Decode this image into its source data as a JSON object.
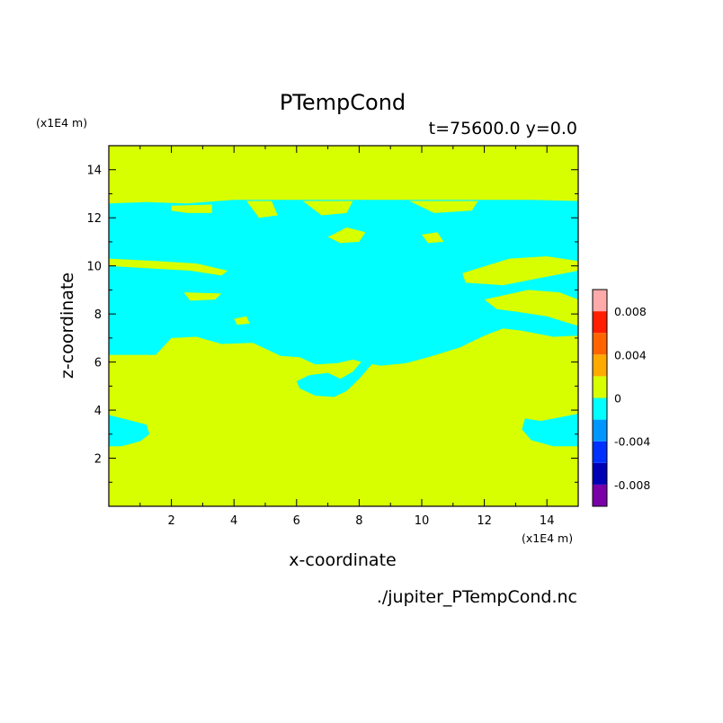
{
  "chart_data": {
    "type": "heatmap",
    "title": "PTempCond",
    "subtitle": "t=75600.0 y=0.0",
    "xlabel": "x-coordinate",
    "ylabel": "z-coordinate",
    "x_unit": "(x1E4 m)",
    "y_unit": "(x1E4 m)",
    "source": "./jupiter_PTempCond.nc",
    "xlim": [
      0,
      15
    ],
    "ylim": [
      0,
      15
    ],
    "x_ticks": [
      2,
      4,
      6,
      8,
      10,
      12,
      14
    ],
    "y_ticks": [
      2,
      4,
      6,
      8,
      10,
      12,
      14
    ],
    "colorbar": {
      "levels": [
        -0.01,
        -0.008,
        -0.006,
        -0.004,
        -0.002,
        0,
        0.002,
        0.004,
        0.006,
        0.008,
        0.01
      ],
      "colors": [
        "#7a00a8",
        "#0000b4",
        "#0030ff",
        "#0096ff",
        "#00ffff",
        "#d7ff00",
        "#ffaa00",
        "#ff6400",
        "#ff1e00",
        "#ffaaaa"
      ],
      "tick_labels": [
        "0.008",
        "0.004",
        "0",
        "-0.004",
        "-0.008"
      ],
      "tick_values": [
        0.008,
        0.004,
        0,
        -0.004,
        -0.008
      ]
    },
    "background_value_color": "#d7ff00",
    "regions": [
      {
        "name": "negative-cond-main",
        "value_range": [
          -0.002,
          0
        ],
        "color": "#00ffff",
        "outline": [
          [
            0,
            12.6
          ],
          [
            1.2,
            12.65
          ],
          [
            2.5,
            12.6
          ],
          [
            4,
            12.75
          ],
          [
            6,
            12.75
          ],
          [
            8,
            12.75
          ],
          [
            10,
            12.75
          ],
          [
            12,
            12.75
          ],
          [
            13.5,
            12.75
          ],
          [
            15,
            12.7
          ],
          [
            15,
            7.1
          ],
          [
            14.2,
            7.05
          ],
          [
            13.2,
            7.3
          ],
          [
            12.6,
            7.4
          ],
          [
            12,
            7.1
          ],
          [
            11.2,
            6.6
          ],
          [
            10.2,
            6.2
          ],
          [
            9.5,
            5.95
          ],
          [
            8.7,
            5.85
          ],
          [
            8.2,
            5.95
          ],
          [
            7.8,
            6.1
          ],
          [
            7.3,
            5.95
          ],
          [
            6.6,
            5.9
          ],
          [
            6.1,
            6.2
          ],
          [
            5.5,
            6.25
          ],
          [
            4.6,
            6.8
          ],
          [
            3.6,
            6.75
          ],
          [
            2.8,
            7.05
          ],
          [
            2,
            7.0
          ],
          [
            1.5,
            6.3
          ],
          [
            0,
            6.3
          ]
        ]
      },
      {
        "name": "negative-cond-lobe",
        "value_range": [
          -0.002,
          0
        ],
        "color": "#00ffff",
        "outline": [
          [
            6.0,
            5.2
          ],
          [
            6.4,
            5.45
          ],
          [
            7.0,
            5.55
          ],
          [
            7.4,
            5.3
          ],
          [
            7.8,
            5.6
          ],
          [
            8.2,
            6.2
          ],
          [
            8.4,
            5.9
          ],
          [
            8.0,
            5.3
          ],
          [
            7.6,
            4.8
          ],
          [
            7.2,
            4.55
          ],
          [
            6.6,
            4.6
          ],
          [
            6.1,
            4.9
          ]
        ]
      },
      {
        "name": "negative-cond-left-low",
        "value_range": [
          -0.002,
          0
        ],
        "color": "#00ffff",
        "outline": [
          [
            0,
            3.8
          ],
          [
            0.6,
            3.6
          ],
          [
            1.2,
            3.4
          ],
          [
            1.3,
            3.0
          ],
          [
            1.0,
            2.7
          ],
          [
            0.4,
            2.5
          ],
          [
            0,
            2.5
          ]
        ]
      },
      {
        "name": "negative-cond-right-low",
        "value_range": [
          -0.002,
          0
        ],
        "color": "#00ffff",
        "outline": [
          [
            13.3,
            3.65
          ],
          [
            13.8,
            3.55
          ],
          [
            14.4,
            3.7
          ],
          [
            15,
            3.85
          ],
          [
            15,
            2.5
          ],
          [
            14.2,
            2.5
          ],
          [
            13.5,
            2.75
          ],
          [
            13.2,
            3.2
          ]
        ]
      }
    ],
    "patches": [
      {
        "name": "zero-patch-top-left",
        "color": "#d7ff00",
        "points": [
          [
            2.0,
            12.5
          ],
          [
            3.3,
            12.55
          ],
          [
            3.3,
            12.2
          ],
          [
            2.5,
            12.2
          ],
          [
            2.0,
            12.3
          ]
        ]
      },
      {
        "name": "zero-patch-top-mid",
        "color": "#d7ff00",
        "points": [
          [
            4.4,
            12.7
          ],
          [
            5.2,
            12.7
          ],
          [
            5.4,
            12.1
          ],
          [
            4.8,
            12.0
          ]
        ]
      },
      {
        "name": "zero-patch-top-mid2",
        "color": "#d7ff00",
        "points": [
          [
            6.2,
            12.7
          ],
          [
            7.8,
            12.7
          ],
          [
            7.6,
            12.2
          ],
          [
            6.8,
            12.1
          ]
        ]
      },
      {
        "name": "zero-patch-top-right",
        "color": "#d7ff00",
        "points": [
          [
            9.6,
            12.7
          ],
          [
            11.8,
            12.7
          ],
          [
            11.6,
            12.3
          ],
          [
            10.4,
            12.2
          ]
        ]
      },
      {
        "name": "zero-patch-mid-blob",
        "color": "#d7ff00",
        "points": [
          [
            7.0,
            11.2
          ],
          [
            7.6,
            11.6
          ],
          [
            8.2,
            11.4
          ],
          [
            8.0,
            11.0
          ],
          [
            7.4,
            10.95
          ]
        ]
      },
      {
        "name": "zero-patch-mid-blob2",
        "color": "#d7ff00",
        "points": [
          [
            10.0,
            11.3
          ],
          [
            10.5,
            11.4
          ],
          [
            10.7,
            11.0
          ],
          [
            10.2,
            10.95
          ]
        ]
      },
      {
        "name": "zero-patch-left-band",
        "color": "#d7ff00",
        "points": [
          [
            0,
            10.3
          ],
          [
            1.5,
            10.2
          ],
          [
            2.8,
            10.1
          ],
          [
            3.8,
            9.8
          ],
          [
            3.6,
            9.6
          ],
          [
            2.6,
            9.8
          ],
          [
            1.2,
            9.9
          ],
          [
            0,
            10.0
          ]
        ]
      },
      {
        "name": "zero-patch-left-band2",
        "color": "#d7ff00",
        "points": [
          [
            2.4,
            8.9
          ],
          [
            3.6,
            8.85
          ],
          [
            3.4,
            8.6
          ],
          [
            2.6,
            8.55
          ]
        ]
      },
      {
        "name": "zero-patch-right-band",
        "color": "#d7ff00",
        "points": [
          [
            11.3,
            9.7
          ],
          [
            12.8,
            10.3
          ],
          [
            14.0,
            10.4
          ],
          [
            15,
            10.2
          ],
          [
            15,
            9.8
          ],
          [
            13.8,
            9.5
          ],
          [
            12.6,
            9.2
          ],
          [
            11.4,
            9.3
          ]
        ]
      },
      {
        "name": "zero-patch-right-band2",
        "color": "#d7ff00",
        "points": [
          [
            12.0,
            8.6
          ],
          [
            13.4,
            9.0
          ],
          [
            14.4,
            8.9
          ],
          [
            15,
            8.6
          ],
          [
            15,
            7.5
          ],
          [
            14.0,
            7.9
          ],
          [
            13.0,
            8.1
          ],
          [
            12.4,
            8.2
          ]
        ]
      },
      {
        "name": "zero-patch-small",
        "color": "#d7ff00",
        "points": [
          [
            4.0,
            7.8
          ],
          [
            4.4,
            7.9
          ],
          [
            4.5,
            7.6
          ],
          [
            4.1,
            7.55
          ]
        ]
      }
    ]
  }
}
